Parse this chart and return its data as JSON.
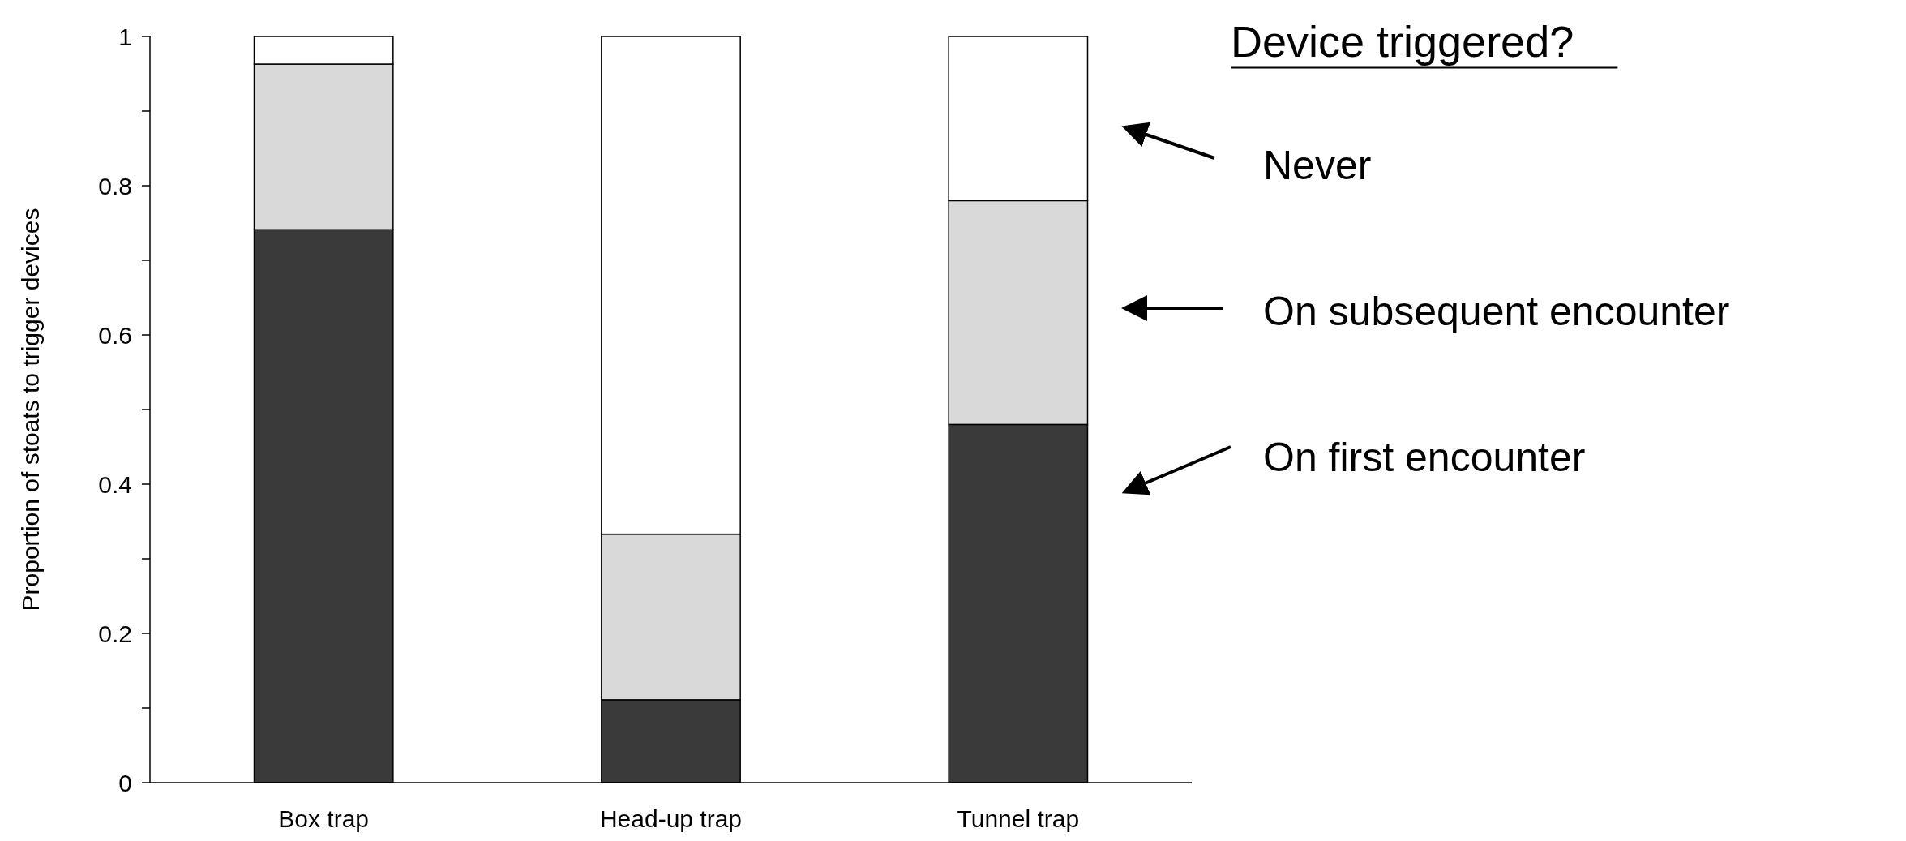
{
  "chart_data": {
    "type": "bar",
    "stacked": true,
    "ylabel": "Proportion of stoats to trigger devices",
    "legend_title": "Device triggered?",
    "legend": "right",
    "categories": [
      "Box trap",
      "Head-up trap",
      "Tunnel trap"
    ],
    "series": [
      {
        "name": "On first encounter",
        "color": "#3a3a3a",
        "values": [
          0.741,
          0.111,
          0.48
        ]
      },
      {
        "name": "On subsequent encounter",
        "color": "#d9d9d9",
        "values": [
          0.222,
          0.222,
          0.3
        ]
      },
      {
        "name": "Never",
        "color": "#ffffff",
        "values": [
          0.037,
          0.667,
          0.22
        ]
      }
    ],
    "ylim": [
      0,
      1
    ],
    "yticks": [
      0,
      {
        "value": 0.1,
        "label": null
      },
      0.2,
      {
        "value": 0.3,
        "label": null
      },
      0.4,
      {
        "value": 0.5,
        "label": null
      },
      0.6,
      {
        "value": 0.7,
        "label": null
      },
      0.8,
      {
        "value": 0.9,
        "label": null
      },
      1
    ]
  }
}
